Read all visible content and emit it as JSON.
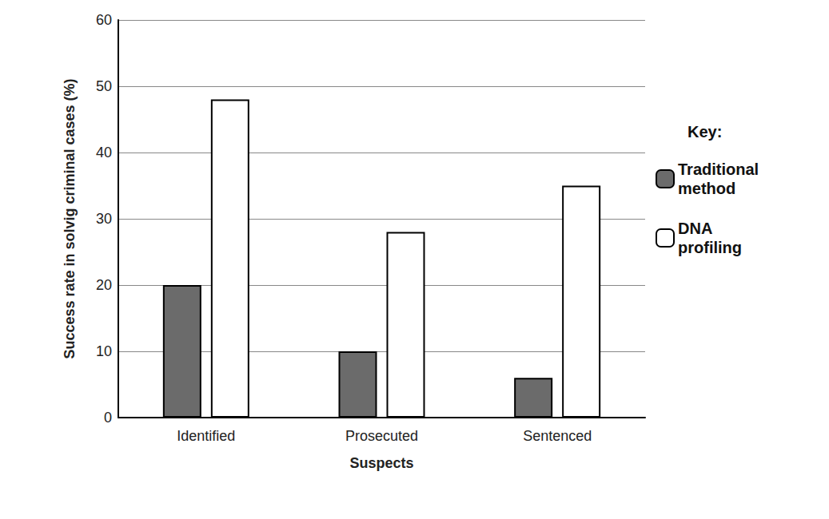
{
  "chart_data": {
    "type": "bar",
    "categories": [
      "Identified",
      "Prosecuted",
      "Sentenced"
    ],
    "series": [
      {
        "name": "Traditional method",
        "color": "#6b6b6b",
        "values": [
          20,
          10,
          6
        ]
      },
      {
        "name": "DNA profiling",
        "color": "#ffffff",
        "values": [
          48,
          28,
          35
        ]
      }
    ],
    "x_label": "Suspects",
    "y_label": "Success rate in solvig criminal cases (%)",
    "legend_title": "Key:",
    "legend": "right",
    "ylim": [
      0,
      60
    ],
    "yticks": [
      0,
      10,
      20,
      30,
      40,
      50,
      60
    ],
    "grid": true
  }
}
